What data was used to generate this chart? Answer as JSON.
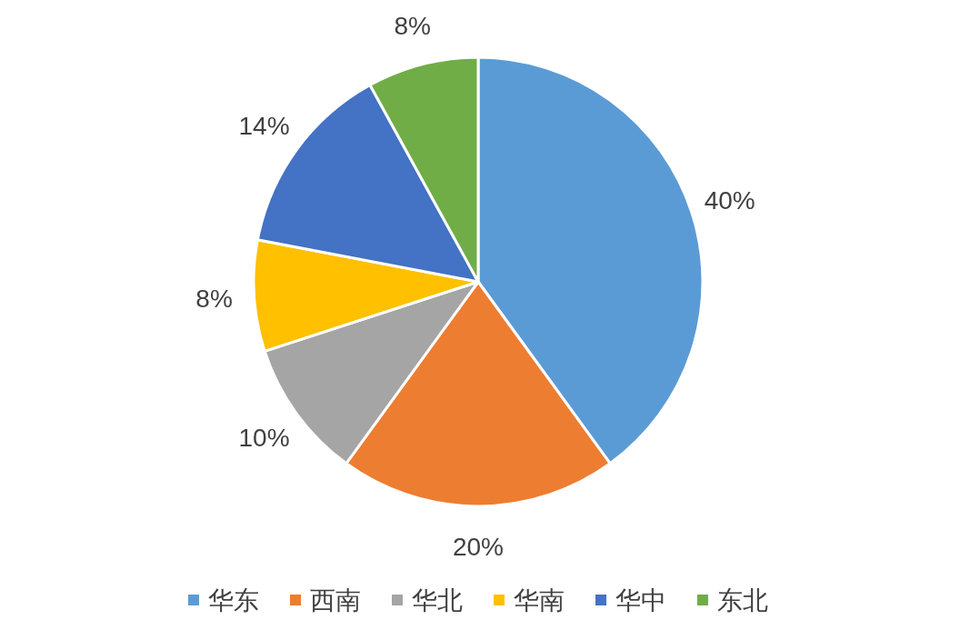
{
  "chart_data": {
    "type": "pie",
    "categories": [
      "华东",
      "西南",
      "华北",
      "华南",
      "华中",
      "东北"
    ],
    "values": [
      40,
      20,
      10,
      8,
      14,
      8
    ],
    "value_labels": [
      "40%",
      "20%",
      "10%",
      "8%",
      "14%",
      "8%"
    ],
    "colors": [
      "#5b9bd5",
      "#ed7d31",
      "#a5a5a5",
      "#ffc000",
      "#4472c4",
      "#70ad47"
    ],
    "legend": "bottom"
  }
}
